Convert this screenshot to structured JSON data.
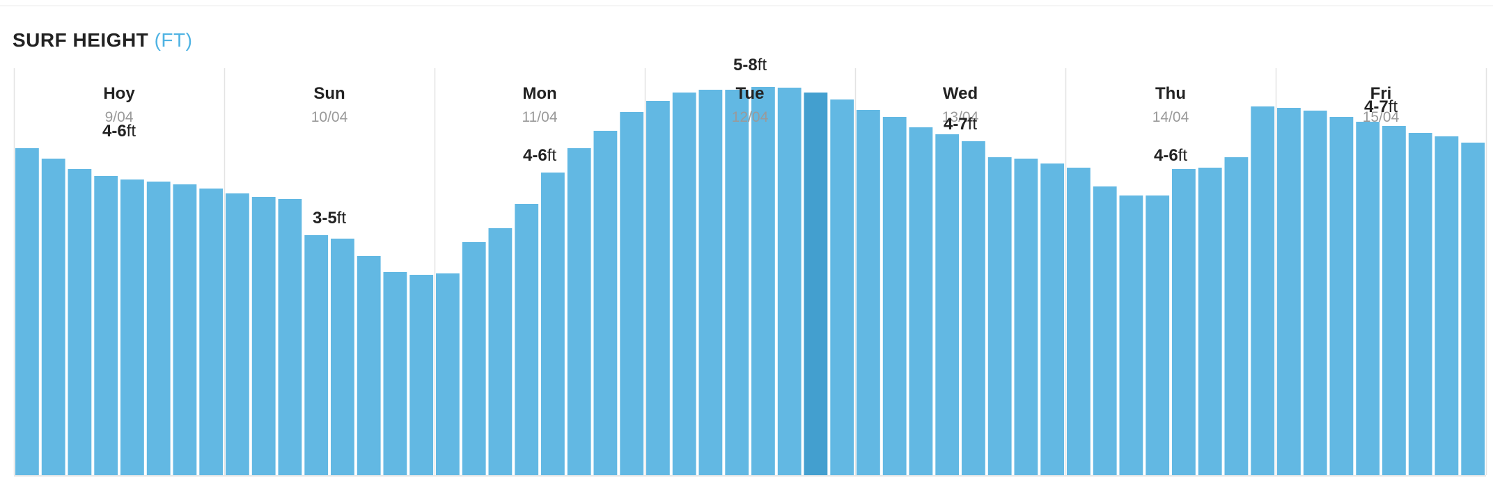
{
  "header": {
    "title": "SURF HEIGHT",
    "unit": "(FT)"
  },
  "colors": {
    "bar": "#62b8e3",
    "bar_selected": "#439fcf",
    "divider": "#e3e3e3",
    "baseline": "#cfcfcf",
    "day_name": "#222222",
    "day_date": "#9a9a9a",
    "label": "#222222"
  },
  "chart_data": {
    "type": "bar",
    "title": "SURF HEIGHT",
    "unit": "(FT)",
    "xlabel": "",
    "ylabel": "",
    "ylim": [
      0,
      10
    ],
    "grid": false,
    "selected_bar_index": 30,
    "days": [
      {
        "name": "Hoy",
        "date": "9/04",
        "range_bold": "4-6",
        "range_unit": "ft",
        "label_value": 4.7,
        "values": [
          4.7,
          4.55,
          4.4,
          4.3,
          4.25,
          4.22,
          4.18,
          4.12
        ]
      },
      {
        "name": "Sun",
        "date": "10/04",
        "range_bold": "3-5",
        "range_unit": "ft",
        "label_value": 3.45,
        "values": [
          4.05,
          4.0,
          3.97,
          3.45,
          3.4,
          3.15,
          2.92,
          2.88
        ]
      },
      {
        "name": "Mon",
        "date": "11/04",
        "range_bold": "4-6",
        "range_unit": "ft",
        "label_value": 4.35,
        "values": [
          2.9,
          3.35,
          3.55,
          3.9,
          4.35,
          4.7,
          4.95,
          5.22
        ]
      },
      {
        "name": "Tue",
        "date": "12/04",
        "range_bold": "5-8",
        "range_unit": "ft",
        "label_value": 5.65,
        "values": [
          5.38,
          5.5,
          5.54,
          5.54,
          5.58,
          5.57,
          5.5,
          5.4
        ]
      },
      {
        "name": "Wed",
        "date": "13/04",
        "range_bold": "4-7",
        "range_unit": "ft",
        "label_value": 4.8,
        "values": [
          5.25,
          5.15,
          5.0,
          4.9,
          4.8,
          4.57,
          4.55,
          4.48
        ]
      },
      {
        "name": "Thu",
        "date": "14/04",
        "range_bold": "4-6",
        "range_unit": "ft",
        "label_value": 4.35,
        "values": [
          4.42,
          4.15,
          4.02,
          4.02,
          4.4,
          4.42,
          4.57,
          5.3
        ]
      },
      {
        "name": "Fri",
        "date": "15/04",
        "range_bold": "4-7",
        "range_unit": "ft",
        "label_value": 5.05,
        "values": [
          5.28,
          5.24,
          5.15,
          5.08,
          5.02,
          4.92,
          4.87,
          4.78
        ]
      }
    ]
  }
}
